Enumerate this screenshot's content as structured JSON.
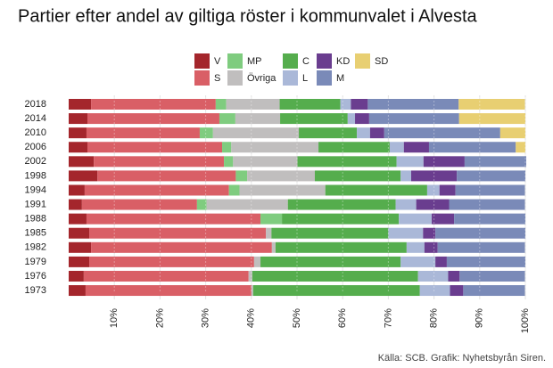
{
  "chart_data": {
    "type": "stacked-barh",
    "title": "Partier efter andel av giltiga röster i kommunvalet i Alvesta",
    "caption": "Källa: SCB. Grafik: Nyhetsbyrån Siren.",
    "categories": [
      "2018",
      "2014",
      "2010",
      "2006",
      "2002",
      "1998",
      "1994",
      "1991",
      "1988",
      "1985",
      "1982",
      "1979",
      "1976",
      "1973"
    ],
    "series": [
      {
        "name": "V",
        "color": "#a4262c",
        "values": [
          4.9,
          4.1,
          3.9,
          4.1,
          5.5,
          6.3,
          3.5,
          2.9,
          3.9,
          4.5,
          4.9,
          4.5,
          3.3,
          3.7
        ]
      },
      {
        "name": "S",
        "color": "#d95f66",
        "values": [
          27.3,
          28.9,
          24.8,
          29.5,
          28.5,
          30.3,
          31.6,
          25.2,
          38.1,
          38.7,
          39.6,
          36.1,
          36.1,
          36.3
        ]
      },
      {
        "name": "MP",
        "color": "#7fcc7f",
        "values": [
          2.3,
          3.5,
          2.9,
          2.0,
          2.0,
          2.5,
          2.3,
          2.1,
          4.7,
          0,
          0,
          0,
          0,
          0
        ]
      },
      {
        "name": "Övriga",
        "color": "#c0bebe",
        "values": [
          11.7,
          9.8,
          18.8,
          19.1,
          14.1,
          14.8,
          18.8,
          17.8,
          0,
          1.2,
          0.8,
          1.4,
          0.8,
          0.4
        ]
      },
      {
        "name": "C",
        "color": "#55ad4d",
        "values": [
          13.3,
          14.8,
          12.7,
          15.6,
          21.7,
          18.8,
          22.3,
          23.6,
          25.6,
          25.6,
          28.7,
          30.7,
          36.3,
          36.5
        ]
      },
      {
        "name": "L",
        "color": "#aab8d8",
        "values": [
          2.3,
          1.6,
          2.9,
          3.1,
          5.9,
          2.3,
          2.7,
          4.5,
          7.2,
          7.6,
          3.9,
          7.6,
          6.6,
          6.6
        ]
      },
      {
        "name": "KD",
        "color": "#6a3d8f",
        "values": [
          3.7,
          3.1,
          3.1,
          5.5,
          9.0,
          10.0,
          3.5,
          7.2,
          4.9,
          2.7,
          2.9,
          2.5,
          2.5,
          2.9
        ]
      },
      {
        "name": "M",
        "color": "#7a8ab8",
        "values": [
          19.9,
          19.7,
          25.4,
          19.0,
          13.5,
          15.0,
          15.2,
          16.6,
          15.6,
          19.7,
          19.1,
          17.2,
          14.3,
          13.5
        ]
      },
      {
        "name": "SD",
        "color": "#e8cf72",
        "values": [
          14.5,
          14.5,
          5.5,
          2.1,
          0,
          0,
          0,
          0,
          0,
          0,
          0,
          0,
          0,
          0
        ]
      }
    ],
    "xlim": [
      0,
      100
    ],
    "xticks": [
      {
        "value": 10,
        "label": "10%"
      },
      {
        "value": 20,
        "label": "20%"
      },
      {
        "value": 30,
        "label": "30%"
      },
      {
        "value": 40,
        "label": "40%"
      },
      {
        "value": 50,
        "label": "50%"
      },
      {
        "value": 60,
        "label": "60%"
      },
      {
        "value": 70,
        "label": "70%"
      },
      {
        "value": 80,
        "label": "80%"
      },
      {
        "value": 90,
        "label": "90%"
      },
      {
        "value": 100,
        "label": "100%"
      }
    ],
    "grid": true
  }
}
